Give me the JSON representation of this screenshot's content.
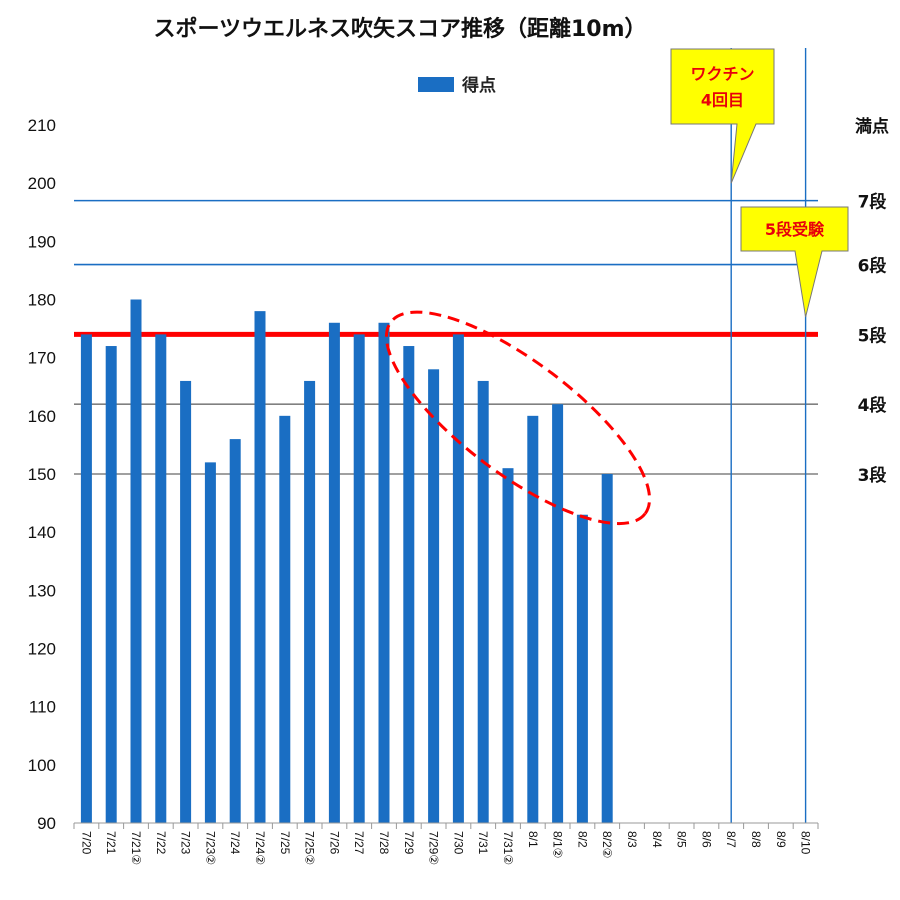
{
  "chart_data": {
    "type": "bar",
    "title": "スポーツウエルネス吹矢スコア推移（距離10m）",
    "legend": [
      {
        "label": "得点",
        "color": "#1a6ec3"
      }
    ],
    "legend_position": "top-center",
    "ylim": [
      90,
      210
    ],
    "yticks": [
      90,
      100,
      110,
      120,
      130,
      140,
      150,
      160,
      170,
      180,
      190,
      200,
      210
    ],
    "grid": false,
    "categories": [
      "7/20",
      "7/21",
      "7/21②",
      "7/22",
      "7/23",
      "7/23②",
      "7/24",
      "7/24②",
      "7/25",
      "7/25②",
      "7/26",
      "7/27",
      "7/28",
      "7/29",
      "7/29②",
      "7/30",
      "7/31",
      "7/31②",
      "8/1",
      "8/1②",
      "8/2",
      "8/2②",
      "8/3",
      "8/4",
      "8/5",
      "8/6",
      "8/7",
      "8/8",
      "8/9",
      "8/10"
    ],
    "series": [
      {
        "name": "得点",
        "color": "#1a6ec3",
        "values": [
          174,
          172,
          180,
          174,
          166,
          152,
          156,
          178,
          160,
          166,
          176,
          174,
          176,
          172,
          168,
          174,
          166,
          151,
          160,
          162,
          143,
          150,
          null,
          null,
          null,
          null,
          null,
          null,
          null,
          null
        ]
      }
    ],
    "reference_lines": [
      {
        "label": "満点",
        "value": 210,
        "color": "#111111",
        "line": false
      },
      {
        "label": "7段",
        "value": 197,
        "color": "#1a6ec3",
        "line": true
      },
      {
        "label": "6段",
        "value": 186,
        "color": "#1a6ec3",
        "line": true
      },
      {
        "label": "5段",
        "value": 174,
        "color": "#ff0000",
        "line": true,
        "highlight": true
      },
      {
        "label": "4段",
        "value": 162,
        "color": "#808080",
        "line": true
      },
      {
        "label": "3段",
        "value": 150,
        "color": "#808080",
        "line": true
      }
    ],
    "event_lines": [
      {
        "category": "8/7",
        "color": "#1a6ec3"
      },
      {
        "category": "8/10",
        "color": "#1a6ec3"
      }
    ],
    "callouts": [
      {
        "lines": [
          "ワクチン",
          "4回目"
        ],
        "anchor_category": "8/7",
        "anchor_value": 200,
        "fill": "#ffff00",
        "text_color": "#e8000b"
      },
      {
        "lines": [
          "5段受験"
        ],
        "anchor_category": "8/10",
        "anchor_value": 177,
        "fill": "#ffff00",
        "text_color": "#e8000b"
      }
    ],
    "annotations": [
      {
        "type": "dashed-ellipse",
        "color": "#ff0000",
        "covers_categories": [
          "7/29",
          "8/2②"
        ],
        "meaning": "declining trend"
      }
    ]
  }
}
